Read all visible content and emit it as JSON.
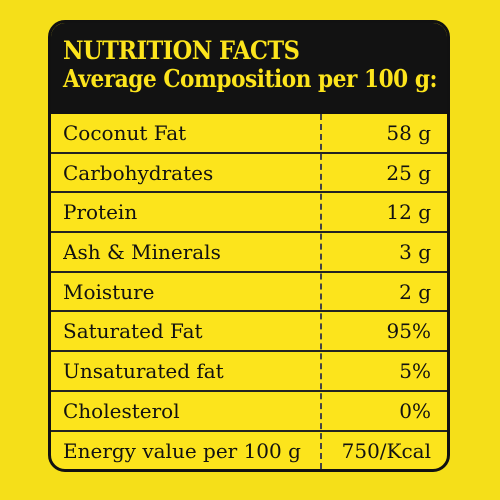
{
  "header": {
    "title": "NUTRITION FACTS",
    "subtitle": "Average Composition per 100 g:"
  },
  "rows": [
    {
      "name": "Coconut Fat",
      "value": "58 g"
    },
    {
      "name": "Carbohydrates",
      "value": "25 g"
    },
    {
      "name": "Protein",
      "value": "12 g"
    },
    {
      "name": "Ash & Minerals",
      "value": "3 g"
    },
    {
      "name": "Moisture",
      "value": "2 g"
    },
    {
      "name": "Saturated Fat",
      "value": "95%"
    },
    {
      "name": "Unsaturated fat",
      "value": "5%"
    },
    {
      "name": "Cholesterol",
      "value": "0%"
    },
    {
      "name": "Energy value per 100 g",
      "value": "750/Kcal"
    }
  ],
  "colors": {
    "background": "#f5df19",
    "panel": "#fce41c",
    "header_background": "#121212",
    "header_text": "#fce41c",
    "text": "#111111"
  }
}
